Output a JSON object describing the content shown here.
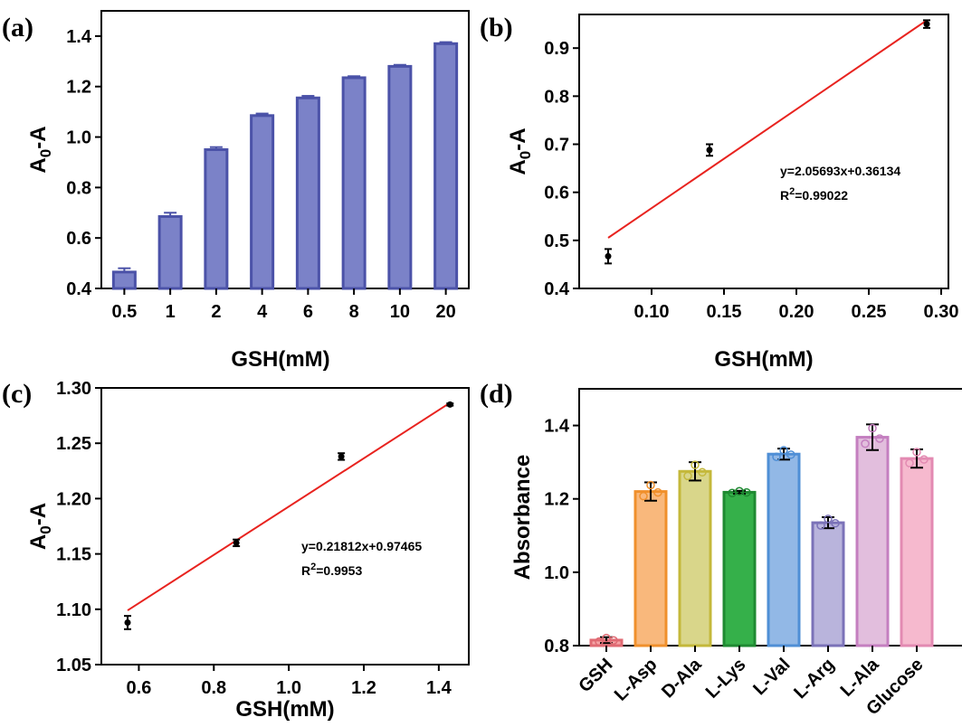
{
  "chart_data": [
    {
      "panel": "(a)",
      "type": "bar",
      "xlabel": "GSH(mM)",
      "ylabel": "A0-A",
      "categories": [
        "0.5",
        "1",
        "2",
        "4",
        "6",
        "8",
        "10",
        "20"
      ],
      "values": [
        0.465,
        0.685,
        0.95,
        1.085,
        1.155,
        1.235,
        1.28,
        1.37
      ],
      "errors": [
        0.015,
        0.015,
        0.01,
        0.008,
        0.008,
        0.006,
        0.006,
        0.006
      ],
      "ylim": [
        0.4,
        1.5
      ],
      "yticks": [
        "0.4",
        "0.6",
        "0.8",
        "1.0",
        "1.2",
        "1.4"
      ],
      "bar_color": "#7b82c8",
      "edge_color": "#4b52a8"
    },
    {
      "panel": "(b)",
      "type": "scatter",
      "xlabel": "GSH(mM)",
      "ylabel": "A0-A",
      "x": [
        0.07,
        0.14,
        0.29
      ],
      "y": [
        0.467,
        0.688,
        0.95
      ],
      "errors": [
        0.015,
        0.012,
        0.008
      ],
      "fit": {
        "slope": 2.05693,
        "intercept": 0.36134,
        "color": "#e8231f"
      },
      "equation": "y=2.05693x+0.36134",
      "r2_prefix": "R",
      "r2_sup": "2",
      "r2_value": "=0.99022",
      "xlim": [
        0.05,
        0.305
      ],
      "ylim": [
        0.4,
        0.97
      ],
      "xticks": [
        "0.10",
        "0.15",
        "0.20",
        "0.25",
        "0.30"
      ],
      "yticks": [
        "0.4",
        "0.5",
        "0.6",
        "0.7",
        "0.8",
        "0.9"
      ]
    },
    {
      "panel": "(c)",
      "type": "scatter",
      "xlabel": "GSH(mM)",
      "ylabel": "A0-A",
      "x": [
        0.57,
        0.86,
        1.14,
        1.43
      ],
      "y": [
        1.088,
        1.16,
        1.238,
        1.285
      ],
      "errors": [
        0.006,
        0.003,
        0.003,
        0.001
      ],
      "fit": {
        "slope": 0.21812,
        "intercept": 0.97465,
        "color": "#e8231f"
      },
      "equation": "y=0.21812x+0.97465",
      "r2_prefix": "R",
      "r2_sup": "2",
      "r2_value": "=0.9953",
      "xlim": [
        0.5,
        1.48
      ],
      "ylim": [
        1.05,
        1.3
      ],
      "xticks": [
        "0.6",
        "0.8",
        "1.0",
        "1.2",
        "1.4"
      ],
      "yticks": [
        "1.05",
        "1.10",
        "1.15",
        "1.20",
        "1.25",
        "1.30"
      ]
    },
    {
      "panel": "(d)",
      "type": "bar",
      "xlabel": "",
      "ylabel": "Absorbance",
      "categories": [
        "GSH",
        "L-Asp",
        "D-Ala",
        "L-Lys",
        "L-Val",
        "L-Arg",
        "L-Ala",
        "Glucose"
      ],
      "values": [
        0.815,
        1.22,
        1.275,
        1.218,
        1.322,
        1.135,
        1.368,
        1.31
      ],
      "errors": [
        0.008,
        0.025,
        0.025,
        0.004,
        0.015,
        0.015,
        0.035,
        0.025
      ],
      "fill_colors": [
        "#f4a3a6",
        "#f9b87c",
        "#d9d68a",
        "#35b04a",
        "#92b8e6",
        "#b9b4dc",
        "#e2bedd",
        "#f6b9ce"
      ],
      "edge_colors": [
        "#e06a73",
        "#f0902c",
        "#c4b83a",
        "#1f8a32",
        "#4f8fd6",
        "#7b72b8",
        "#c47fc0",
        "#e38ab2"
      ],
      "ylim": [
        0.8,
        1.5
      ],
      "yticks": [
        "0.8",
        "1.0",
        "1.2",
        "1.4"
      ]
    }
  ],
  "labels": {
    "panel_a": "(a)",
    "panel_b": "(b)",
    "panel_c": "(c)",
    "panel_d": "(d)",
    "ylabel_a_main": "A",
    "ylabel_a_sub": "0",
    "ylabel_a_tail": "-A"
  }
}
